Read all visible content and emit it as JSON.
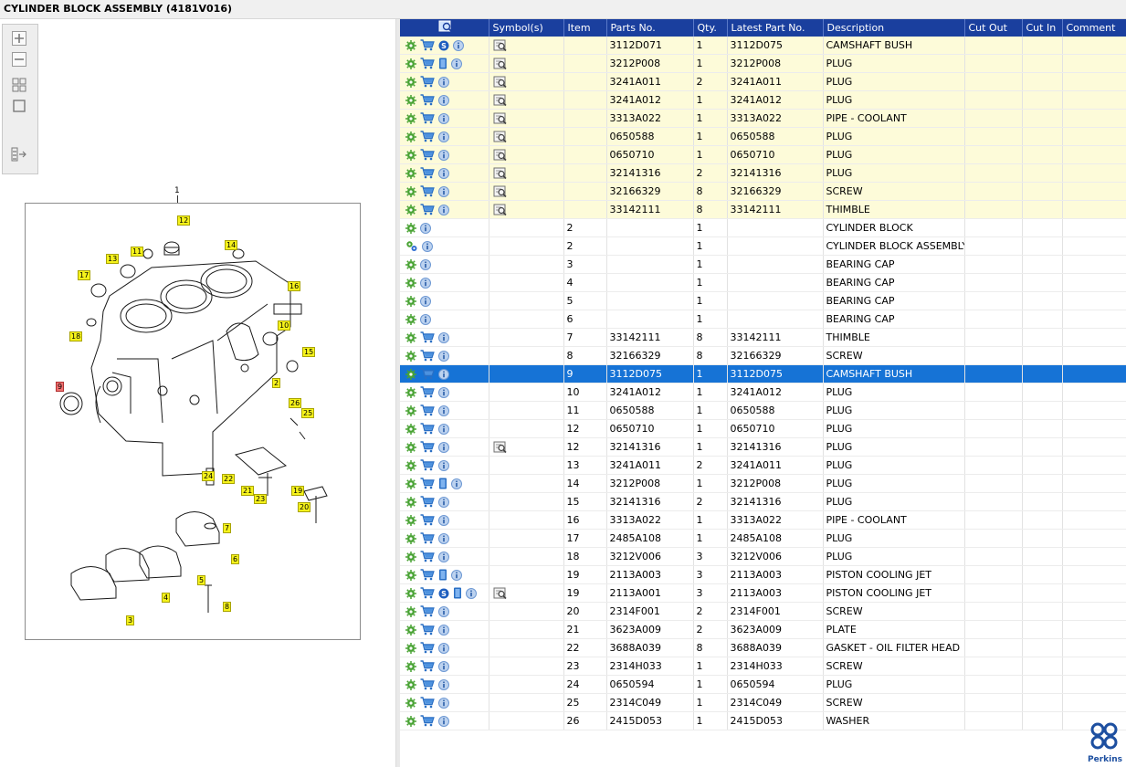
{
  "title": "CYLINDER BLOCK ASSEMBLY (4181V016)",
  "toolbar": {
    "zoom_in": "zoom-in-icon",
    "zoom_out": "zoom-out-icon",
    "fit": "fit-icon",
    "actual": "actual-size-icon",
    "export": "export-icon"
  },
  "drawing": {
    "ref_label": "1",
    "callouts": [
      "12",
      "11",
      "14",
      "13",
      "17",
      "16",
      "10",
      "18",
      "15",
      "2",
      "9",
      "26",
      "25",
      "24",
      "22",
      "21",
      "23",
      "19",
      "20",
      "7",
      "6",
      "5",
      "4",
      "8",
      "3"
    ]
  },
  "grid": {
    "headers": [
      "",
      "Symbol(s)",
      "Item",
      "Parts No.",
      "Qty.",
      "Latest Part No.",
      "Description",
      "Cut Out",
      "Cut In",
      "Comment"
    ],
    "rows": [
      {
        "icons": "gcsi",
        "sym": true,
        "item": "",
        "part": "3112D071",
        "qty": "1",
        "latest": "3112D075",
        "desc": "CAMSHAFT BUSH",
        "hl": true
      },
      {
        "icons": "gcbi",
        "sym": true,
        "item": "",
        "part": "3212P008",
        "qty": "1",
        "latest": "3212P008",
        "desc": "PLUG",
        "hl": true
      },
      {
        "icons": "gci",
        "sym": true,
        "item": "",
        "part": "3241A011",
        "qty": "2",
        "latest": "3241A011",
        "desc": "PLUG",
        "hl": true
      },
      {
        "icons": "gci",
        "sym": true,
        "item": "",
        "part": "3241A012",
        "qty": "1",
        "latest": "3241A012",
        "desc": "PLUG",
        "hl": true
      },
      {
        "icons": "gci",
        "sym": true,
        "item": "",
        "part": "3313A022",
        "qty": "1",
        "latest": "3313A022",
        "desc": "PIPE - COOLANT",
        "hl": true
      },
      {
        "icons": "gci",
        "sym": true,
        "item": "",
        "part": "0650588",
        "qty": "1",
        "latest": "0650588",
        "desc": "PLUG",
        "hl": true
      },
      {
        "icons": "gci",
        "sym": true,
        "item": "",
        "part": "0650710",
        "qty": "1",
        "latest": "0650710",
        "desc": "PLUG",
        "hl": true
      },
      {
        "icons": "gci",
        "sym": true,
        "item": "",
        "part": "32141316",
        "qty": "2",
        "latest": "32141316",
        "desc": "PLUG",
        "hl": true
      },
      {
        "icons": "gci",
        "sym": true,
        "item": "",
        "part": "32166329",
        "qty": "8",
        "latest": "32166329",
        "desc": "SCREW",
        "hl": true
      },
      {
        "icons": "gci",
        "sym": true,
        "item": "",
        "part": "33142111",
        "qty": "8",
        "latest": "33142111",
        "desc": "THIMBLE",
        "hl": true
      },
      {
        "icons": "gi",
        "sym": false,
        "item": "2",
        "part": "",
        "qty": "1",
        "latest": "",
        "desc": "CYLINDER BLOCK",
        "hl": false
      },
      {
        "icons": "Gi",
        "sym": false,
        "item": "2",
        "part": "",
        "qty": "1",
        "latest": "",
        "desc": "CYLINDER BLOCK ASSEMBLY",
        "hl": false
      },
      {
        "icons": "gi",
        "sym": false,
        "item": "3",
        "part": "",
        "qty": "1",
        "latest": "",
        "desc": "BEARING CAP",
        "hl": false
      },
      {
        "icons": "gi",
        "sym": false,
        "item": "4",
        "part": "",
        "qty": "1",
        "latest": "",
        "desc": "BEARING CAP",
        "hl": false
      },
      {
        "icons": "gi",
        "sym": false,
        "item": "5",
        "part": "",
        "qty": "1",
        "latest": "",
        "desc": "BEARING CAP",
        "hl": false
      },
      {
        "icons": "gi",
        "sym": false,
        "item": "6",
        "part": "",
        "qty": "1",
        "latest": "",
        "desc": "BEARING CAP",
        "hl": false
      },
      {
        "icons": "gci",
        "sym": false,
        "item": "7",
        "part": "33142111",
        "qty": "8",
        "latest": "33142111",
        "desc": "THIMBLE",
        "hl": false
      },
      {
        "icons": "gci",
        "sym": false,
        "item": "8",
        "part": "32166329",
        "qty": "8",
        "latest": "32166329",
        "desc": "SCREW",
        "hl": false
      },
      {
        "icons": "gci",
        "sym": false,
        "item": "9",
        "part": "3112D075",
        "qty": "1",
        "latest": "3112D075",
        "desc": "CAMSHAFT BUSH",
        "hl": false,
        "sel": true
      },
      {
        "icons": "gci",
        "sym": false,
        "item": "10",
        "part": "3241A012",
        "qty": "1",
        "latest": "3241A012",
        "desc": "PLUG",
        "hl": false
      },
      {
        "icons": "gci",
        "sym": false,
        "item": "11",
        "part": "0650588",
        "qty": "1",
        "latest": "0650588",
        "desc": "PLUG",
        "hl": false
      },
      {
        "icons": "gci",
        "sym": false,
        "item": "12",
        "part": "0650710",
        "qty": "1",
        "latest": "0650710",
        "desc": "PLUG",
        "hl": false
      },
      {
        "icons": "gci",
        "sym": true,
        "item": "12",
        "part": "32141316",
        "qty": "1",
        "latest": "32141316",
        "desc": "PLUG",
        "hl": false
      },
      {
        "icons": "gci",
        "sym": false,
        "item": "13",
        "part": "3241A011",
        "qty": "2",
        "latest": "3241A011",
        "desc": "PLUG",
        "hl": false
      },
      {
        "icons": "gcbi",
        "sym": false,
        "item": "14",
        "part": "3212P008",
        "qty": "1",
        "latest": "3212P008",
        "desc": "PLUG",
        "hl": false
      },
      {
        "icons": "gci",
        "sym": false,
        "item": "15",
        "part": "32141316",
        "qty": "2",
        "latest": "32141316",
        "desc": "PLUG",
        "hl": false
      },
      {
        "icons": "gci",
        "sym": false,
        "item": "16",
        "part": "3313A022",
        "qty": "1",
        "latest": "3313A022",
        "desc": "PIPE - COOLANT",
        "hl": false
      },
      {
        "icons": "gci",
        "sym": false,
        "item": "17",
        "part": "2485A108",
        "qty": "1",
        "latest": "2485A108",
        "desc": "PLUG",
        "hl": false
      },
      {
        "icons": "gci",
        "sym": false,
        "item": "18",
        "part": "3212V006",
        "qty": "3",
        "latest": "3212V006",
        "desc": "PLUG",
        "hl": false
      },
      {
        "icons": "gcbi",
        "sym": false,
        "item": "19",
        "part": "2113A003",
        "qty": "3",
        "latest": "2113A003",
        "desc": "PISTON COOLING JET",
        "hl": false
      },
      {
        "icons": "gcsbi",
        "sym": true,
        "item": "19",
        "part": "2113A001",
        "qty": "3",
        "latest": "2113A003",
        "desc": "PISTON COOLING JET",
        "hl": false
      },
      {
        "icons": "gci",
        "sym": false,
        "item": "20",
        "part": "2314F001",
        "qty": "2",
        "latest": "2314F001",
        "desc": "SCREW",
        "hl": false
      },
      {
        "icons": "gci",
        "sym": false,
        "item": "21",
        "part": "3623A009",
        "qty": "2",
        "latest": "3623A009",
        "desc": "PLATE",
        "hl": false
      },
      {
        "icons": "gci",
        "sym": false,
        "item": "22",
        "part": "3688A039",
        "qty": "8",
        "latest": "3688A039",
        "desc": "GASKET - OIL FILTER HEAD",
        "hl": false
      },
      {
        "icons": "gci",
        "sym": false,
        "item": "23",
        "part": "2314H033",
        "qty": "1",
        "latest": "2314H033",
        "desc": "SCREW",
        "hl": false
      },
      {
        "icons": "gci",
        "sym": false,
        "item": "24",
        "part": "0650594",
        "qty": "1",
        "latest": "0650594",
        "desc": "PLUG",
        "hl": false
      },
      {
        "icons": "gci",
        "sym": false,
        "item": "25",
        "part": "2314C049",
        "qty": "1",
        "latest": "2314C049",
        "desc": "SCREW",
        "hl": false
      },
      {
        "icons": "gci",
        "sym": false,
        "item": "26",
        "part": "2415D053",
        "qty": "1",
        "latest": "2415D053",
        "desc": "WASHER",
        "hl": false
      }
    ]
  },
  "logo_text": "Perkins"
}
